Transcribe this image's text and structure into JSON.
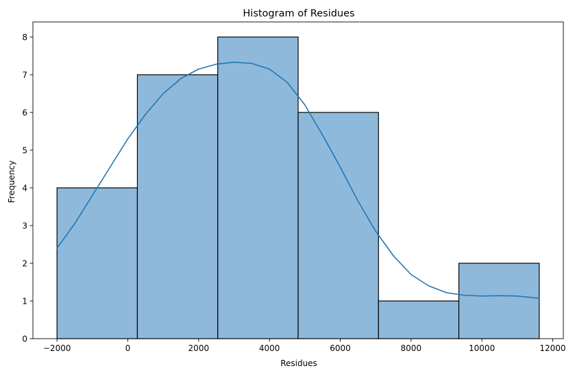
{
  "chart_data": {
    "type": "bar",
    "subtype": "histogram",
    "title": "Histogram of Residues",
    "xlabel": "Residues",
    "ylabel": "Frequency",
    "bins": [
      {
        "start": -2000,
        "end": 270,
        "count": 4
      },
      {
        "start": 270,
        "end": 2540,
        "count": 7
      },
      {
        "start": 2540,
        "end": 4810,
        "count": 8
      },
      {
        "start": 4810,
        "end": 7080,
        "count": 6
      },
      {
        "start": 7080,
        "end": 9350,
        "count": 1
      },
      {
        "start": 9350,
        "end": 11620,
        "count": 2
      }
    ],
    "kde": {
      "x": [
        -2000,
        -1500,
        -1000,
        -500,
        0,
        500,
        1000,
        1500,
        2000,
        2500,
        3000,
        3500,
        4000,
        4500,
        5000,
        5500,
        6000,
        6500,
        7000,
        7500,
        8000,
        8500,
        9000,
        9500,
        10000,
        10500,
        11000,
        11620
      ],
      "y": [
        2.4,
        3.05,
        3.8,
        4.55,
        5.3,
        5.95,
        6.5,
        6.9,
        7.15,
        7.28,
        7.33,
        7.3,
        7.15,
        6.8,
        6.2,
        5.4,
        4.55,
        3.65,
        2.85,
        2.2,
        1.7,
        1.4,
        1.22,
        1.15,
        1.13,
        1.14,
        1.13,
        1.07
      ]
    },
    "xticks": [
      -2000,
      0,
      2000,
      4000,
      6000,
      8000,
      10000,
      12000
    ],
    "xtick_labels": [
      "−2000",
      "0",
      "2000",
      "4000",
      "6000",
      "8000",
      "10000",
      "12000"
    ],
    "yticks": [
      0,
      1,
      2,
      3,
      4,
      5,
      6,
      7,
      8
    ],
    "yticks_labels": [
      "0",
      "1",
      "2",
      "3",
      "4",
      "5",
      "6",
      "7",
      "8"
    ],
    "xlim": [
      -2681,
      12301
    ],
    "ylim": [
      0,
      8.4
    ],
    "grid": false,
    "bar_color": "#8fb9db",
    "bar_edge_color": "#000000",
    "line_color": "#1f77b4"
  }
}
